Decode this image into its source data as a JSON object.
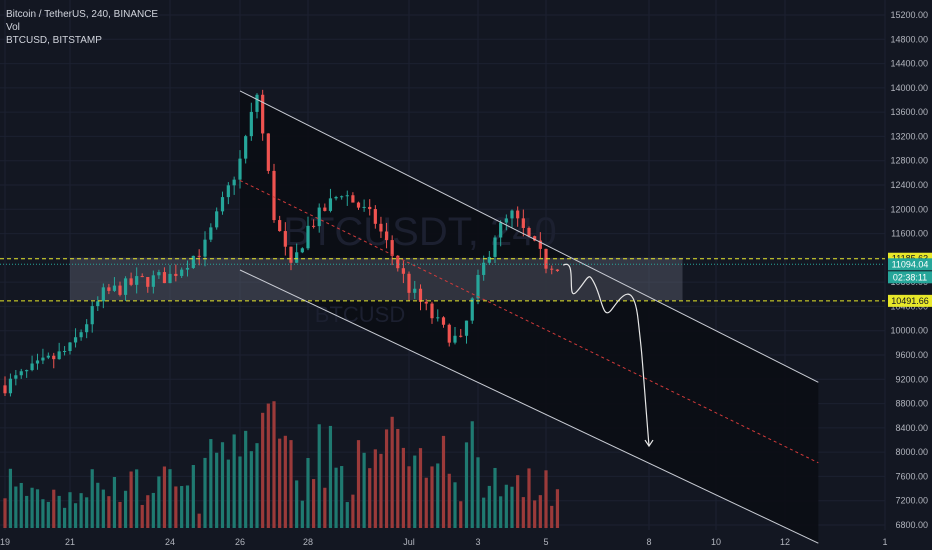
{
  "legend": {
    "title": "Bitcoin / TetherUS, 240, BINANCE",
    "vol": "Vol",
    "compare": "BTCUSD, BITSTAMP"
  },
  "watermark": "BTCUSDT, 240",
  "watermark_sub": "BTCUSD",
  "price_tags": {
    "upper_level": "11185.63",
    "current_price": "11094.04",
    "countdown": "02:38:11",
    "lower_level": "10491.66"
  },
  "colors": {
    "background": "#131722",
    "up": "#26a69a",
    "down": "#ef5350",
    "vol_up": "#1f7a71",
    "vol_down": "#9b3a3a",
    "level_line": "#e8e82a",
    "channel": "#c9ccd4",
    "midline": "#d23a3a",
    "zone_fill": "#5d6170",
    "current_tag": "#26a69a",
    "level_tag": "#e8e82a"
  },
  "chart_data": {
    "type": "candlestick",
    "timeframe": "240",
    "ylim": [
      6700,
      15400
    ],
    "y_ticks": [
      15200,
      14800,
      14400,
      14000,
      13600,
      13200,
      12800,
      12400,
      12000,
      11600,
      11200,
      10800,
      10400,
      10000,
      9600,
      9200,
      8800,
      8400,
      8000,
      7600,
      7200,
      6800
    ],
    "x_ticks": [
      "19",
      "21",
      "24",
      "26",
      "28",
      "Jul",
      "3",
      "5",
      "8",
      "10",
      "12",
      "1"
    ],
    "horizontal_levels": [
      11185.63,
      10491.66
    ],
    "current_price": 11094.04,
    "channel": {
      "upper": {
        "start": {
          "date": "2019-06-26",
          "price": 13950
        },
        "end": {
          "date": "2019-07-13",
          "price": 9150
        }
      },
      "lower": {
        "start": {
          "date": "2019-06-26",
          "price": 11000
        },
        "end": {
          "date": "2019-07-13",
          "price": 6500
        }
      }
    },
    "zone": {
      "from": {
        "date": "2019-06-21",
        "price": 11200
      },
      "to": {
        "date": "2019-07-09",
        "price": 10500
      }
    },
    "projection_path_end": {
      "date": "2019-07-08",
      "price": 8100
    },
    "anchors": [
      {
        "date": "2019-06-19",
        "price": 9100
      },
      {
        "date": "2019-06-21",
        "price": 9700
      },
      {
        "date": "2019-06-22",
        "price": 10600
      },
      {
        "date": "2019-06-23",
        "price": 10800
      },
      {
        "date": "2019-06-24",
        "price": 10900
      },
      {
        "date": "2019-06-25",
        "price": 11400
      },
      {
        "date": "2019-06-26",
        "price": 12800
      },
      {
        "date": "2019-06-26T12",
        "price": 13900
      },
      {
        "date": "2019-06-27",
        "price": 11900
      },
      {
        "date": "2019-06-27T12",
        "price": 11000
      },
      {
        "date": "2019-06-28",
        "price": 11700
      },
      {
        "date": "2019-06-29",
        "price": 12300
      },
      {
        "date": "2019-06-30",
        "price": 11800
      },
      {
        "date": "2019-07-01",
        "price": 10700
      },
      {
        "date": "2019-07-02",
        "price": 10000
      },
      {
        "date": "2019-07-02T12",
        "price": 9800
      },
      {
        "date": "2019-07-03",
        "price": 10800
      },
      {
        "date": "2019-07-03T12",
        "price": 11600
      },
      {
        "date": "2019-07-04",
        "price": 11900
      },
      {
        "date": "2019-07-04T12",
        "price": 11500
      },
      {
        "date": "2019-07-05",
        "price": 11100
      }
    ]
  }
}
